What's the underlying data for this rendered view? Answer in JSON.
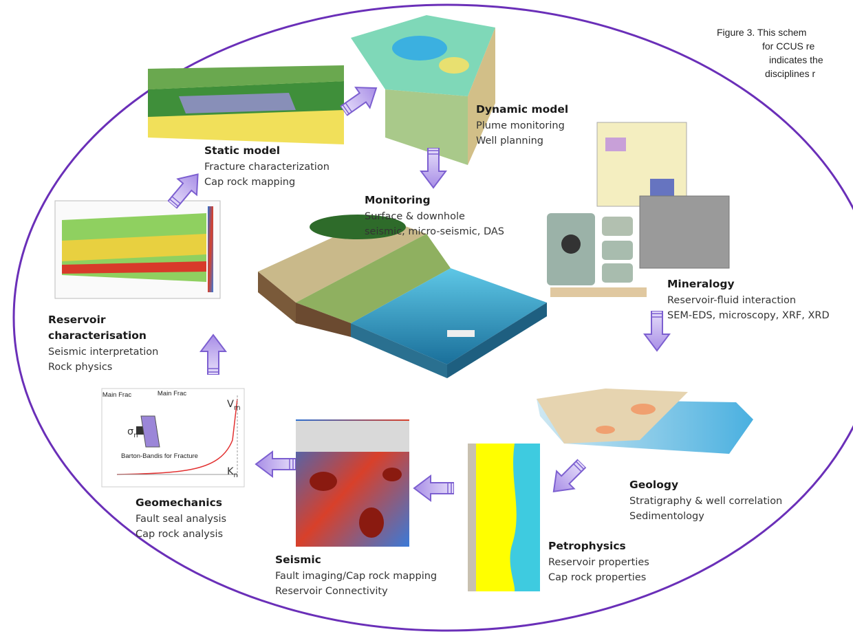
{
  "caption": {
    "lines": [
      "Figure 3. This schem",
      "for CCUS re",
      "indicates the",
      "disciplines r"
    ]
  },
  "nodes": [
    {
      "title_lines": [
        "Static model"
      ],
      "lines": [
        "Fracture characterization",
        "Cap rock mapping"
      ]
    },
    {
      "title_lines": [
        "Dynamic model"
      ],
      "lines": [
        "Plume monitoring",
        "Well planning"
      ]
    },
    {
      "title_lines": [
        "Monitoring"
      ],
      "lines": [
        "Surface & downhole",
        "seismic, micro-seismic, DAS"
      ]
    },
    {
      "title_lines": [
        "Mineralogy"
      ],
      "lines": [
        "Reservoir-fluid interaction",
        "SEM-EDS, microscopy, XRF, XRD"
      ]
    },
    {
      "title_lines": [
        "Geology"
      ],
      "lines": [
        "Stratigraphy & well correlation",
        "Sedimentology"
      ]
    },
    {
      "title_lines": [
        "Petrophysics"
      ],
      "lines": [
        "Reservoir properties",
        "Cap rock properties"
      ]
    },
    {
      "title_lines": [
        "Seismic"
      ],
      "lines": [
        "Fault imaging/Cap rock mapping",
        "Reservoir Connectivity"
      ]
    },
    {
      "title_lines": [
        "Geomechanics"
      ],
      "lines": [
        "Fault seal analysis",
        "Cap rock analysis"
      ]
    },
    {
      "title_lines": [
        "Reservoir",
        "characterisation"
      ],
      "lines": [
        "Seismic interpretation",
        "Rock physics"
      ]
    }
  ],
  "geomech_plot": {
    "title": "Main Frac",
    "legend": "Main Frac",
    "note": "Barton-Bandis for Fracture"
  }
}
